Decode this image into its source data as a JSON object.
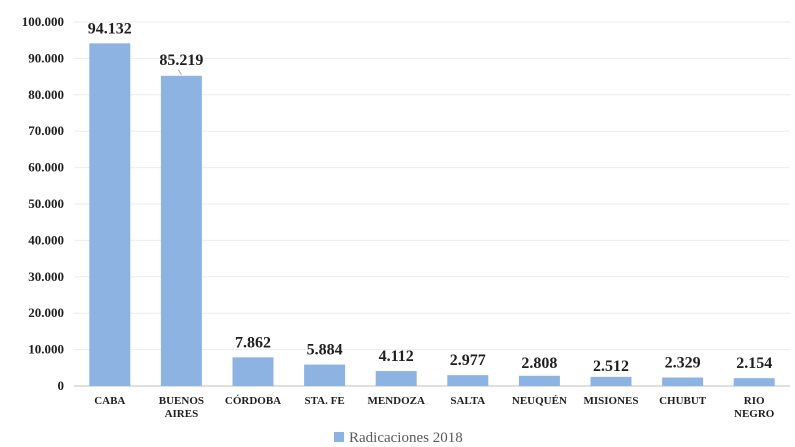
{
  "chart_data": {
    "type": "bar",
    "categories": [
      "CABA",
      "BUENOS AIRES",
      "CÓRDOBA",
      "STA. FE",
      "MENDOZA",
      "SALTA",
      "NEUQUÉN",
      "MISIONES",
      "CHUBUT",
      "RIO NEGRO"
    ],
    "category_lines": [
      [
        "CABA"
      ],
      [
        "BUENOS",
        "AIRES"
      ],
      [
        "CÓRDOBA"
      ],
      [
        "STA. FE"
      ],
      [
        "MENDOZA"
      ],
      [
        "SALTA"
      ],
      [
        "NEUQUÉN"
      ],
      [
        "MISIONES"
      ],
      [
        "CHUBUT"
      ],
      [
        "RIO",
        "NEGRO"
      ]
    ],
    "series": [
      {
        "name": "Radicaciones  2018",
        "color": "#8db3e2",
        "values": [
          94132,
          85219,
          7862,
          5884,
          4112,
          2977,
          2808,
          2512,
          2329,
          2154
        ],
        "labels": [
          "94.132",
          "85.219",
          "7.862",
          "5.884",
          "4.112",
          "2.977",
          "2.808",
          "2.512",
          "2.329",
          "2.154"
        ]
      }
    ],
    "ylim": [
      0,
      100000
    ],
    "yticks": [
      0,
      10000,
      20000,
      30000,
      40000,
      50000,
      60000,
      70000,
      80000,
      90000,
      100000
    ],
    "ytick_labels": [
      "0",
      "10.000",
      "20.000",
      "30.000",
      "40.000",
      "50.000",
      "60.000",
      "70.000",
      "80.000",
      "90.000",
      "100.000"
    ],
    "grid": true,
    "legend_position": "bottom",
    "title": "",
    "xlabel": "",
    "ylabel": ""
  }
}
